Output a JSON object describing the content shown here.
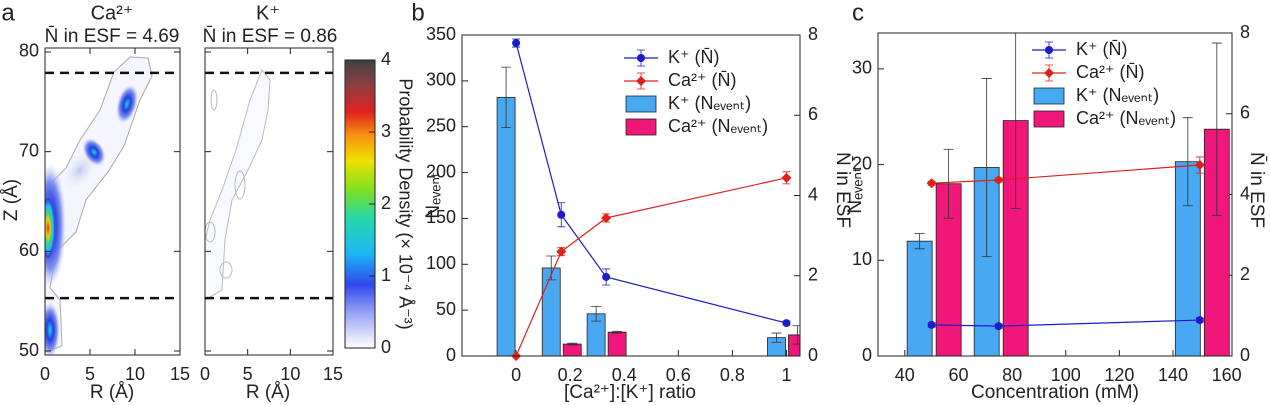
{
  "chart_data": [
    {
      "type": "heatmap",
      "panel": "a",
      "title": "Ca²⁺",
      "subtitle": "N̄ in ESF = 4.69",
      "xlabel": "R (Å)",
      "ylabel": "Z (Å)",
      "xlim": [
        0,
        15
      ],
      "xticks": [
        0,
        5,
        10,
        15
      ],
      "ylim": [
        49.6,
        80.4
      ],
      "yticks": [
        50,
        60,
        70,
        80
      ],
      "hlines": [
        77.9,
        55.3
      ]
    },
    {
      "type": "heatmap",
      "title": "K⁺",
      "subtitle": "N̄ in ESF = 0.86",
      "xlabel": "R (Å)",
      "xlim": [
        0,
        15
      ],
      "xticks": [
        0,
        5,
        10,
        15
      ],
      "ylim": [
        49.6,
        80.4
      ],
      "yticks": [
        50,
        60,
        70,
        80
      ],
      "hlines": [
        77.9,
        55.3
      ],
      "colorbar": {
        "label": "Probability Density (× 10⁻⁴ Å⁻³)",
        "lim": [
          0,
          4
        ],
        "ticks": [
          0,
          1,
          2,
          3,
          4
        ]
      }
    },
    {
      "type": "bar_line",
      "panel": "b",
      "xlabel": "[Ca²⁺]:[K⁺] ratio",
      "ylabel": "Nₑᵥₑₙₜ",
      "y2label": "N̄ in ESF",
      "x": [
        0,
        0.167,
        0.333,
        1
      ],
      "xlim": [
        -0.2,
        1.05
      ],
      "xticks": [
        0,
        0.2,
        0.4,
        0.6,
        0.8,
        1
      ],
      "ylim": [
        0,
        350
      ],
      "yticks": [
        0,
        50,
        100,
        150,
        200,
        250,
        300,
        350
      ],
      "y2lim": [
        0,
        8
      ],
      "y2ticks": [
        0,
        2,
        4,
        6,
        8
      ],
      "series": [
        {
          "name": "K⁺ (N̄)",
          "kind": "line",
          "marker": "circle",
          "axis": "y2",
          "color": "#1c1cc8",
          "values": [
            7.8,
            3.52,
            1.97,
            0.82
          ],
          "errors": [
            0.1,
            0.3,
            0.2,
            0.05
          ]
        },
        {
          "name": "Ca²⁺ (N̄)",
          "kind": "line",
          "marker": "diamond",
          "axis": "y2",
          "color": "#e0201c",
          "values": [
            0,
            2.6,
            3.44,
            4.44
          ],
          "errors": [
            0,
            0.1,
            0.1,
            0.15
          ]
        },
        {
          "name": "K⁺ (Nₑᵥₑₙₜ)",
          "kind": "bar",
          "color": "#48a8f2",
          "values": [
            282,
            96,
            46,
            20
          ],
          "errors": [
            33,
            13,
            8,
            5
          ]
        },
        {
          "name": "Ca²⁺ (Nₑᵥₑₙₜ)",
          "kind": "bar",
          "color": "#f0167a",
          "values": [
            0,
            13,
            26,
            23
          ],
          "errors": [
            0,
            1,
            1,
            10
          ]
        }
      ]
    },
    {
      "type": "bar_line",
      "panel": "c",
      "xlabel": "Concentration (mM)",
      "ylabel": "Nₑᵥₑₙₜ",
      "y2label": "N̄ in ESF",
      "x": [
        50,
        75,
        150
      ],
      "xlim": [
        30,
        162
      ],
      "xticks": [
        40,
        60,
        80,
        100,
        120,
        140,
        160
      ],
      "ylim": [
        0,
        33.75
      ],
      "yticks": [
        0,
        10,
        20,
        30
      ],
      "y2lim": [
        0,
        8
      ],
      "y2ticks": [
        0,
        2,
        4,
        6,
        8
      ],
      "series": [
        {
          "name": "K⁺ (N̄)",
          "kind": "line",
          "marker": "circle",
          "axis": "y2",
          "color": "#1c1cc8",
          "values": [
            0.77,
            0.74,
            0.89
          ],
          "errors": [
            0.05,
            0.05,
            0.05
          ]
        },
        {
          "name": "Ca²⁺ (N̄)",
          "kind": "line",
          "marker": "diamond",
          "axis": "y2",
          "color": "#e0201c",
          "values": [
            4.28,
            4.36,
            4.73
          ],
          "errors": [
            0.05,
            0.05,
            0.2
          ]
        },
        {
          "name": "K⁺ (Nₑᵥₑₙₜ)",
          "kind": "bar",
          "color": "#48a8f2",
          "values": [
            12,
            19.7,
            20.3
          ],
          "errors": [
            0.8,
            9.3,
            4.6
          ]
        },
        {
          "name": "Ca²⁺ (Nₑᵥₑₙₜ)",
          "kind": "bar",
          "color": "#f0167a",
          "values": [
            18,
            24.6,
            23.7
          ],
          "errors": [
            3.6,
            9.2,
            9
          ]
        }
      ]
    }
  ]
}
